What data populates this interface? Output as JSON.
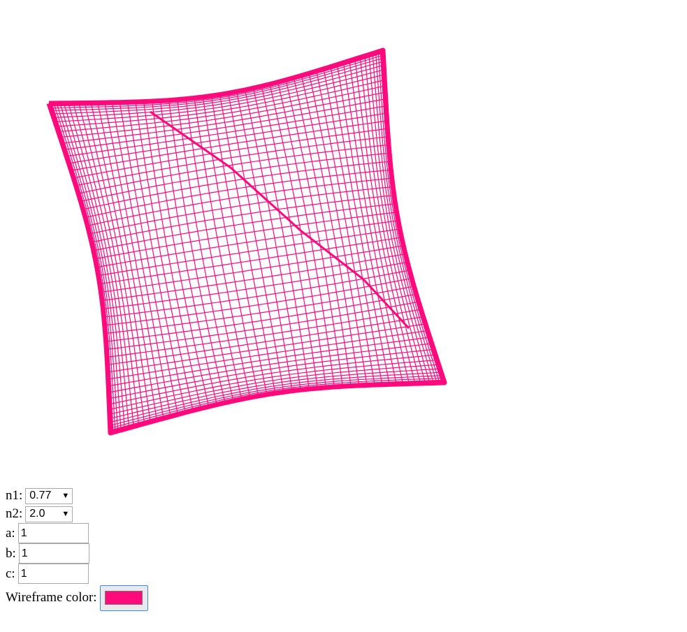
{
  "scene": {
    "wireframe_color": "#ff0a7d"
  },
  "controls": {
    "n1": {
      "label": "n1:",
      "value": "0.77"
    },
    "n2": {
      "label": "n2:",
      "value": "2.0"
    },
    "a": {
      "label": "a:",
      "value": "1"
    },
    "b": {
      "label": "b:",
      "value": "1"
    },
    "c": {
      "label": "c:",
      "value": "1"
    },
    "wireframe": {
      "label": "Wireframe color:"
    }
  }
}
